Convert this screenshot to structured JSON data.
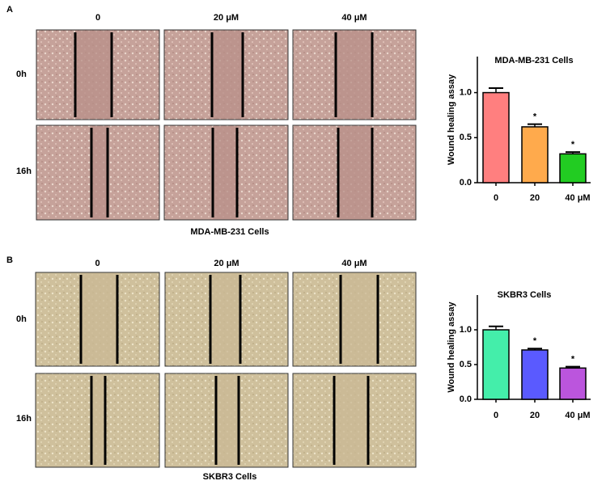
{
  "panels": [
    {
      "label": "A",
      "columns": [
        "0",
        "20  μM",
        "40  μM"
      ],
      "rows": [
        "0h",
        "16h"
      ],
      "caption": "MDA-MB-231  Cells"
    },
    {
      "label": "B",
      "columns": [
        "0",
        "20  μM",
        "40  μM"
      ],
      "rows": [
        "0h",
        "16h"
      ],
      "caption": "SKBR3 Cells"
    }
  ],
  "chart_data": [
    {
      "type": "bar",
      "title": "MDA-MB-231  Cells",
      "y_label": "Wound healing assay",
      "categories": [
        "0",
        "20",
        "40  μM"
      ],
      "values": [
        1.0,
        0.62,
        0.32
      ],
      "errors": [
        0.05,
        0.03,
        0.02
      ],
      "annotations": [
        null,
        "*",
        "*"
      ],
      "colors": [
        "#ff7f7f",
        "#ffaa4c",
        "#22cc22"
      ],
      "ylim": [
        0,
        1.4
      ],
      "yticks": [
        {
          "value": 0,
          "label": "0.0"
        },
        {
          "value": 0.5,
          "label": "0.5"
        },
        {
          "value": 1,
          "label": "1.0"
        }
      ]
    },
    {
      "type": "bar",
      "title": "SKBR3 Cells",
      "y_label": "Wound healing assay",
      "categories": [
        "0",
        "20",
        "40  μM"
      ],
      "values": [
        1.0,
        0.71,
        0.45
      ],
      "errors": [
        0.05,
        0.02,
        0.02
      ],
      "annotations": [
        null,
        "*",
        "*"
      ],
      "colors": [
        "#44eeaa",
        "#5a5aff",
        "#bb55dd"
      ],
      "ylim": [
        0,
        1.5
      ],
      "yticks": [
        {
          "value": 0,
          "label": "0.0"
        },
        {
          "value": 0.5,
          "label": "0.5"
        },
        {
          "value": 1,
          "label": "1.0"
        }
      ]
    }
  ]
}
